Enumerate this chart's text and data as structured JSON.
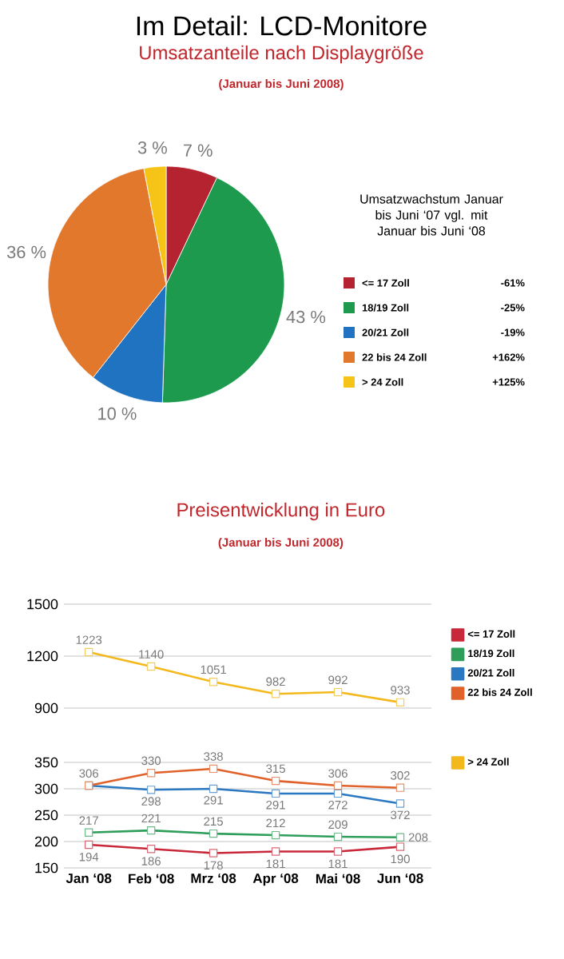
{
  "chart_data": [
    {
      "type": "pie",
      "title": "Umsatzanteile nach Displaygröße",
      "subtitle": "(Januar bis Juni 2008)",
      "legend_title": "Umsatzwachstum Januar bis Juni ‘07 vgl. mit Januar bis Juni ‘08",
      "legend": "right",
      "categories": [
        "<= 17 Zoll",
        "18/19 Zoll",
        "20/21 Zoll",
        "22 bis 24 Zoll",
        "> 24 Zoll"
      ],
      "values": [
        7,
        43,
        10,
        36,
        3
      ],
      "value_labels": [
        "7 %",
        "43 %",
        "10 %",
        "36 %",
        "3 %"
      ],
      "colors": [
        "#b52230",
        "#1e9a4e",
        "#1f73c0",
        "#e2782c",
        "#f5c416"
      ],
      "annotations": [
        "Im Detail: LCD-Monitore",
        "-61%",
        "-25%",
        "-19%",
        "+162%",
        "+125%"
      ]
    },
    {
      "type": "line",
      "title": "Preisentwicklung in Euro",
      "subtitle": "(Januar bis Juni 2008)",
      "categories": [
        null,
        null,
        null,
        null,
        null,
        null
      ],
      "ylim": [
        900,
        1500
      ],
      "yticks": [
        900,
        1200,
        1500
      ],
      "grid": "y",
      "marker": "square",
      "legend": "right",
      "series": [
        {
          "name": "> 24 Zoll",
          "color": "#f2b81c",
          "values": [
            1223,
            1140,
            1051,
            982,
            992,
            933
          ],
          "value_labels": [
            "1223",
            "1140",
            "1051",
            "982",
            "992",
            "933"
          ]
        }
      ]
    },
    {
      "type": "line",
      "categories": [
        "Jan ‘08",
        "Feb ‘08",
        "Mrz ‘08",
        "Apr ‘08",
        "Mai ‘08",
        "Jun ‘08"
      ],
      "ylim": [
        150,
        350
      ],
      "yticks": [
        150,
        200,
        250,
        300,
        350
      ],
      "grid": "y",
      "marker": "square",
      "legend": "right",
      "annotations": [
        "298",
        "291",
        "291",
        "272",
        "372"
      ],
      "series": [
        {
          "name": "<= 17 Zoll",
          "color": "#c8283a",
          "values": [
            194,
            186,
            178,
            181,
            181,
            190
          ],
          "value_labels": [
            "194",
            "186",
            "178",
            "181",
            "181",
            "190"
          ]
        },
        {
          "name": "18/19 Zoll",
          "color": "#2e9e5a",
          "values": [
            217,
            221,
            215,
            212,
            209,
            208
          ],
          "value_labels": [
            "217",
            "221",
            "215",
            "212",
            "209",
            "208"
          ]
        },
        {
          "name": "20/21 Zoll",
          "color": "#2a78c2",
          "values": [
            306,
            298,
            300,
            291,
            291,
            272
          ]
        },
        {
          "name": "22 bis 24 Zoll",
          "color": "#e0612a",
          "values": [
            306,
            330,
            338,
            315,
            306,
            302
          ],
          "value_labels": [
            "306",
            "330",
            "338",
            "315",
            "306",
            "302"
          ]
        }
      ]
    }
  ]
}
